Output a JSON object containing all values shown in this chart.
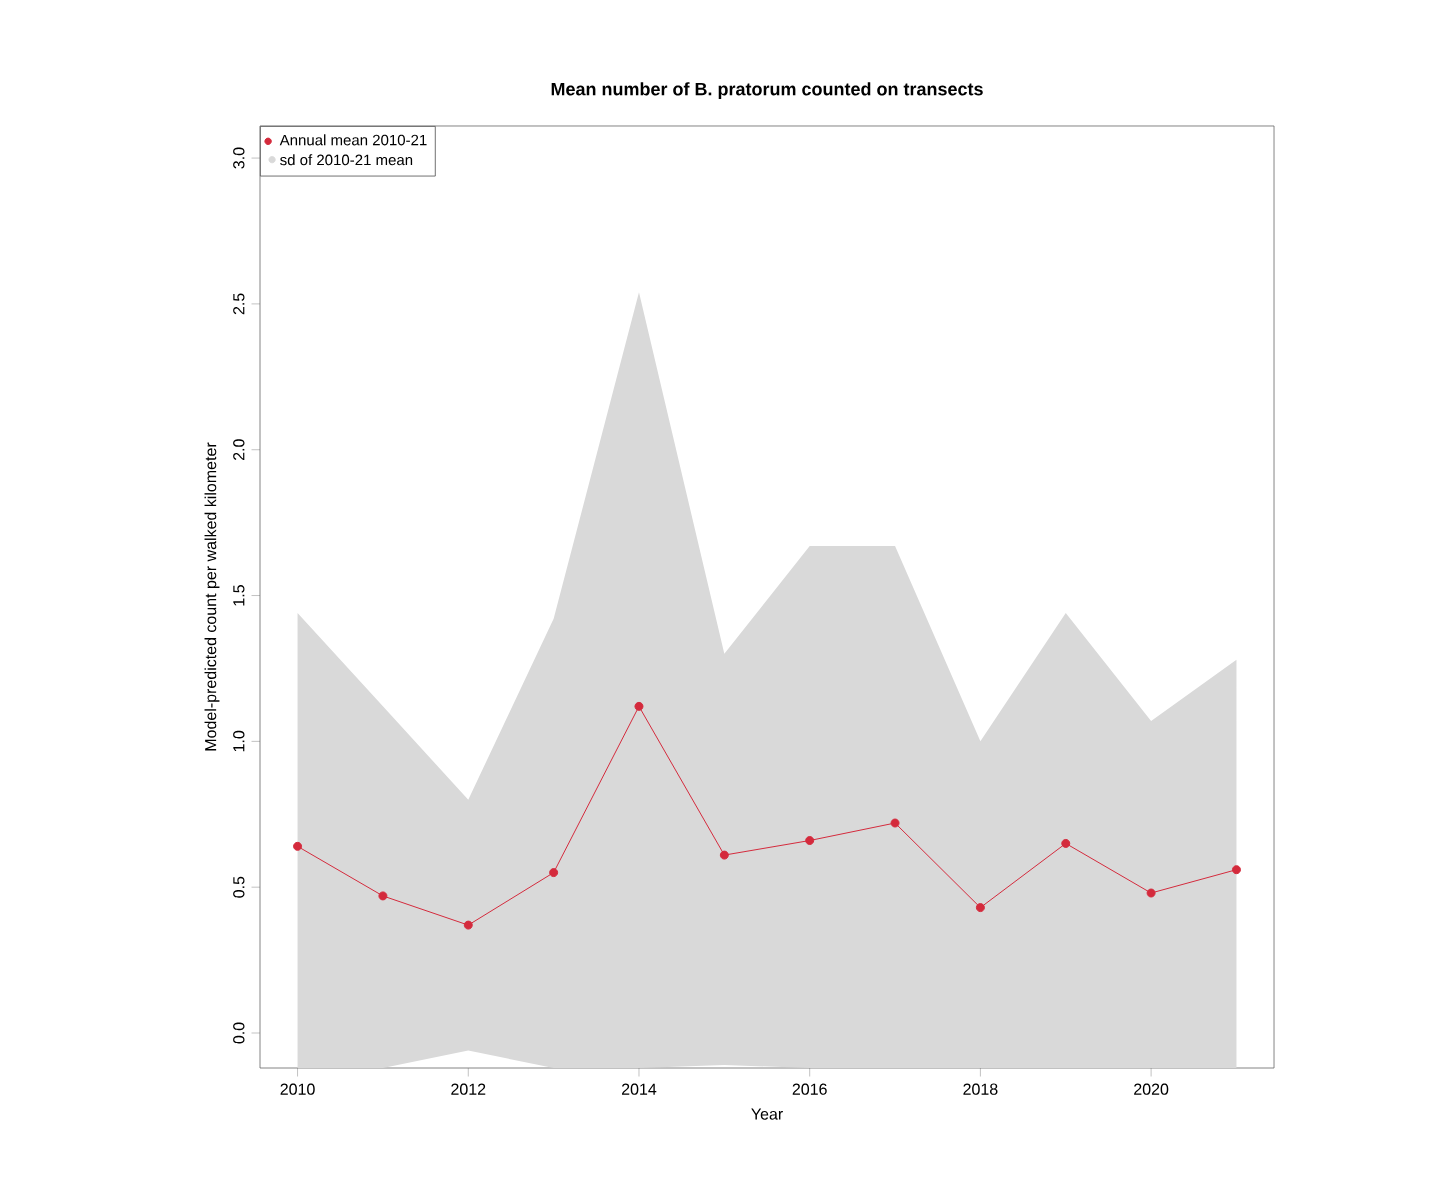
{
  "chart_data": {
    "type": "line",
    "title": "Mean number of B. pratorum counted on transects",
    "xlabel": "Year",
    "ylabel": "Model-predicted count per walked kilometer",
    "x": [
      2010,
      2011,
      2012,
      2013,
      2014,
      2015,
      2016,
      2017,
      2018,
      2019,
      2020,
      2021
    ],
    "series": [
      {
        "name": "Annual mean 2010-21",
        "color": "#d42a3c",
        "values": [
          0.64,
          0.47,
          0.37,
          0.55,
          1.12,
          0.61,
          0.66,
          0.72,
          0.43,
          0.65,
          0.48,
          0.56
        ],
        "upper": [
          1.44,
          1.12,
          0.8,
          1.42,
          2.54,
          1.3,
          1.67,
          1.67,
          1.0,
          1.44,
          1.07,
          1.28
        ],
        "lower": [
          -0.12,
          -0.12,
          -0.06,
          -0.12,
          -0.12,
          -0.11,
          -0.12,
          -0.12,
          -0.12,
          -0.12,
          -0.12,
          -0.12
        ]
      }
    ],
    "annotations": [
      "sd of 2010-21 mean"
    ],
    "xlim": [
      2009.56,
      2021.44
    ],
    "ylim": [
      -0.12,
      3.11
    ],
    "xticks": [
      2010,
      2012,
      2014,
      2016,
      2018,
      2020
    ],
    "yticks": [
      {
        "value": 0,
        "label": "0.0"
      },
      {
        "value": 0.5,
        "label": "0.5"
      },
      {
        "value": 1,
        "label": "1.0"
      },
      {
        "value": 1.5,
        "label": "1.5"
      },
      {
        "value": 2,
        "label": "2.0"
      },
      {
        "value": 2.5,
        "label": "2.5"
      },
      {
        "value": 3,
        "label": "3.0"
      }
    ],
    "legend": "top left",
    "marker": "circle",
    "line_style": "solid"
  }
}
